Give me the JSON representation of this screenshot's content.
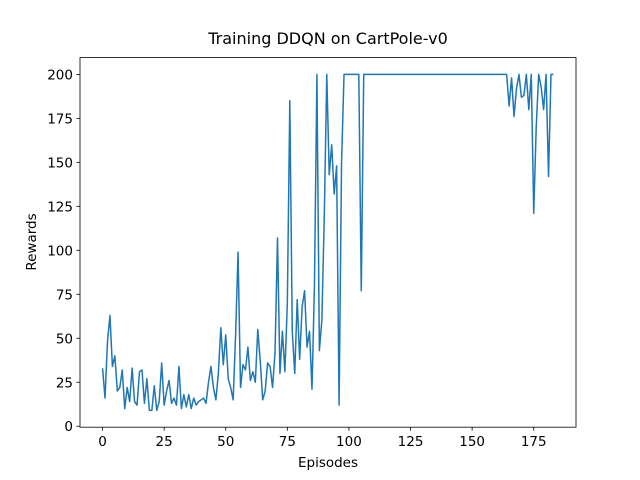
{
  "chart_data": {
    "type": "line",
    "title": "Training DDQN on CartPole-v0",
    "xlabel": "Episodes",
    "ylabel": "Rewards",
    "x": [
      0,
      1,
      2,
      3,
      4,
      5,
      6,
      7,
      8,
      9,
      10,
      11,
      12,
      13,
      14,
      15,
      16,
      17,
      18,
      19,
      20,
      21,
      22,
      23,
      24,
      25,
      26,
      27,
      28,
      29,
      30,
      31,
      32,
      33,
      34,
      35,
      36,
      37,
      38,
      39,
      40,
      41,
      42,
      43,
      44,
      45,
      46,
      47,
      48,
      49,
      50,
      51,
      52,
      53,
      54,
      55,
      56,
      57,
      58,
      59,
      60,
      61,
      62,
      63,
      64,
      65,
      66,
      67,
      68,
      69,
      70,
      71,
      72,
      73,
      74,
      75,
      76,
      77,
      78,
      79,
      80,
      81,
      82,
      83,
      84,
      85,
      86,
      87,
      88,
      89,
      90,
      91,
      92,
      93,
      94,
      95,
      96,
      97,
      98,
      99,
      100,
      101,
      102,
      103,
      104,
      105,
      106,
      107,
      108,
      109,
      110,
      111,
      112,
      113,
      114,
      115,
      116,
      117,
      118,
      119,
      120,
      121,
      122,
      123,
      124,
      125,
      126,
      127,
      128,
      129,
      130,
      131,
      132,
      133,
      134,
      135,
      136,
      137,
      138,
      139,
      140,
      141,
      142,
      143,
      144,
      145,
      146,
      147,
      148,
      149,
      150,
      151,
      152,
      153,
      154,
      155,
      156,
      157,
      158,
      159,
      160,
      161,
      162,
      163,
      164,
      165,
      166,
      167,
      168,
      169,
      170,
      171,
      172,
      173,
      174,
      175,
      176,
      177,
      178,
      179,
      180,
      181,
      182,
      183
    ],
    "series": [
      {
        "name": "Rewards",
        "color": "#1f77b4",
        "values": [
          33,
          16,
          48,
          63,
          34,
          40,
          20,
          22,
          32,
          10,
          22,
          14,
          33,
          14,
          12,
          31,
          32,
          13,
          27,
          9,
          9,
          23,
          9,
          14,
          36,
          12,
          20,
          26,
          13,
          16,
          12,
          34,
          10,
          18,
          11,
          18,
          10,
          16,
          12,
          14,
          15,
          16,
          13,
          25,
          34,
          22,
          15,
          30,
          56,
          35,
          52,
          27,
          22,
          15,
          52,
          99,
          22,
          35,
          32,
          45,
          26,
          31,
          25,
          55,
          37,
          15,
          20,
          36,
          34,
          22,
          42,
          107,
          30,
          54,
          31,
          70,
          185,
          54,
          30,
          72,
          38,
          68,
          77,
          45,
          54,
          21,
          80,
          200,
          43,
          60,
          120,
          200,
          143,
          160,
          132,
          148,
          12,
          150,
          200,
          200,
          200,
          200,
          200,
          200,
          200,
          77,
          200,
          200,
          200,
          200,
          200,
          200,
          200,
          200,
          200,
          200,
          200,
          200,
          200,
          200,
          200,
          200,
          200,
          200,
          200,
          200,
          200,
          200,
          200,
          200,
          200,
          200,
          200,
          200,
          200,
          200,
          200,
          200,
          200,
          200,
          200,
          200,
          200,
          200,
          200,
          200,
          200,
          200,
          200,
          200,
          200,
          200,
          200,
          200,
          200,
          200,
          200,
          200,
          200,
          200,
          200,
          200,
          200,
          200,
          200,
          182,
          198,
          176,
          192,
          200,
          187,
          188,
          200,
          180,
          200,
          121,
          170,
          200,
          193,
          180,
          200,
          142,
          200,
          200
        ]
      }
    ],
    "xlim": [
      -9.15,
      192.15
    ],
    "xticks": [
      0,
      25,
      50,
      75,
      100,
      125,
      150,
      175
    ],
    "ylim": [
      -0.55,
      209.55
    ],
    "yticks": [
      0,
      25,
      50,
      75,
      100,
      125,
      150,
      175,
      200
    ],
    "grid": false
  }
}
